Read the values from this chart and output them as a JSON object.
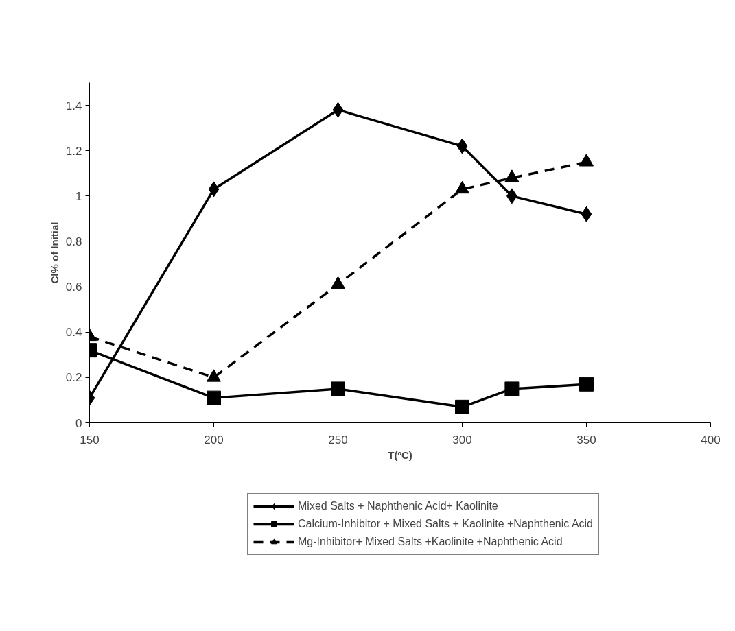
{
  "chart_data": {
    "type": "line",
    "xlabel": "T(ºC)",
    "ylabel": "Cl% of Initial",
    "x": [
      150,
      200,
      250,
      300,
      320,
      350
    ],
    "series": [
      {
        "name": "Mixed Salts + Naphthenic Acid+ Kaolinite",
        "color": "#000000",
        "marker": "diamond",
        "line_style": "solid",
        "values": [
          0.11,
          1.03,
          1.38,
          1.22,
          1.0,
          0.92
        ]
      },
      {
        "name": "Calcium-Inhibitor + Mixed Salts + Kaolinite +Naphthenic Acid",
        "color": "#000000",
        "marker": "square",
        "line_style": "solid",
        "values": [
          0.32,
          0.11,
          0.15,
          0.07,
          0.15,
          0.17
        ]
      },
      {
        "name": "Mg-Inhibitor+ Mixed Salts +Kaolinite +Naphthenic Acid",
        "color": "#000000",
        "marker": "triangle",
        "line_style": "dashed",
        "values": [
          0.38,
          0.2,
          0.61,
          1.03,
          1.08,
          1.15
        ]
      }
    ],
    "xlim": [
      150,
      400
    ],
    "xticks": [
      150,
      200,
      250,
      300,
      350,
      400
    ],
    "ylim": [
      0,
      1.5
    ],
    "yticks": [
      0,
      0.2,
      0.4,
      0.6,
      0.8,
      1,
      1.2,
      1.4
    ],
    "grid": false,
    "legend": "bottom"
  }
}
